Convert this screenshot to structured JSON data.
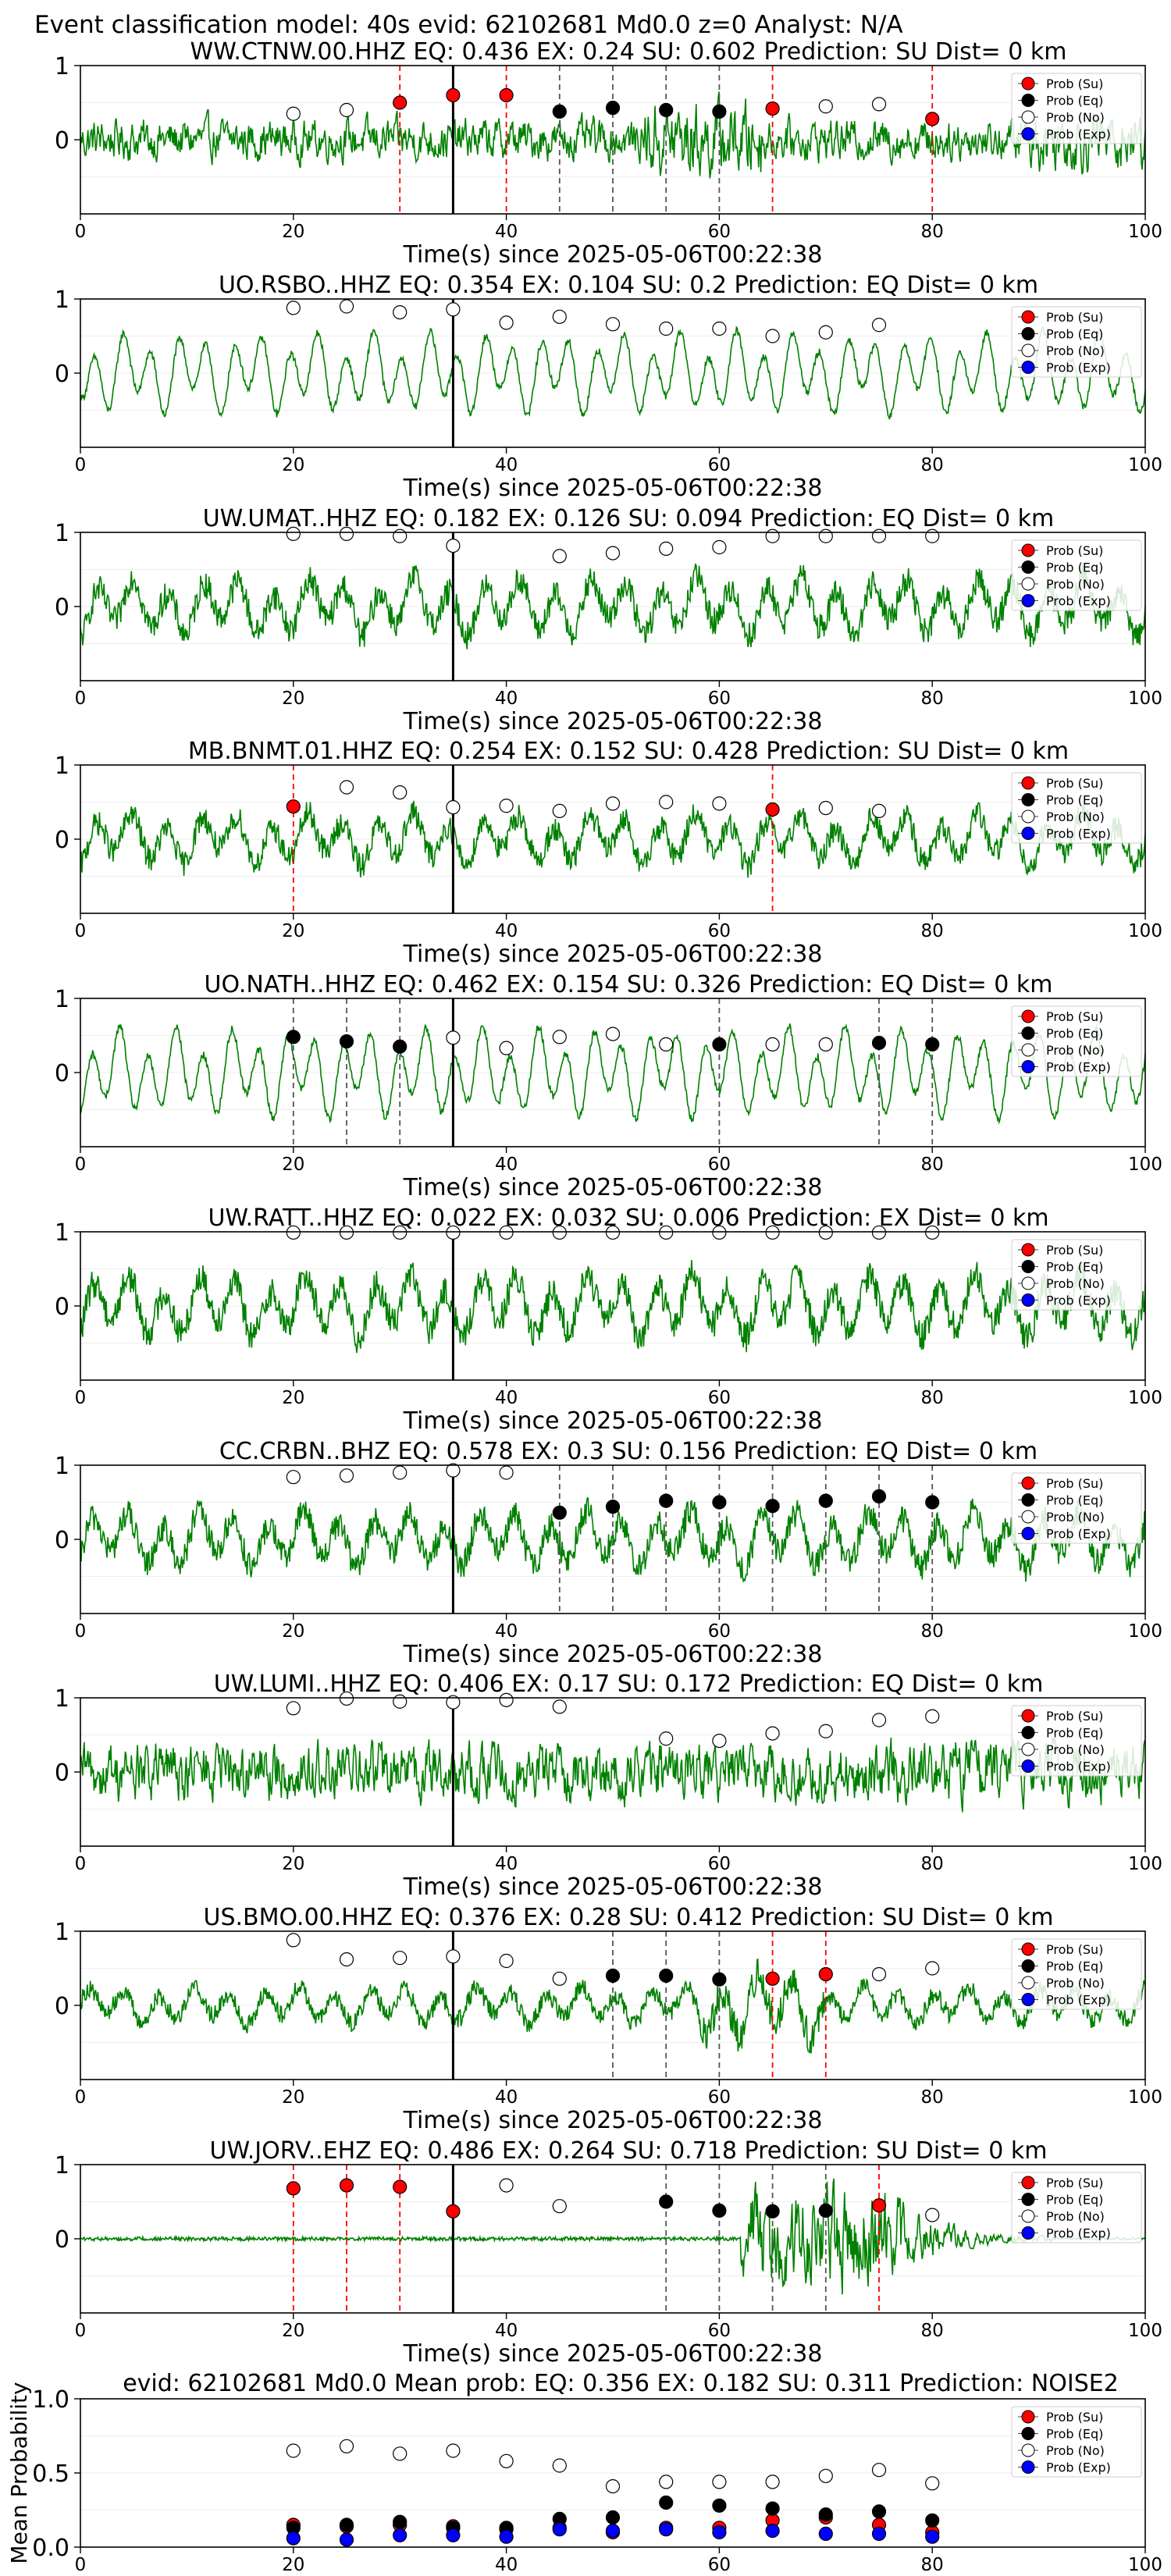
{
  "header": {
    "title": "Event classification model: 40s evid: 62102681 Md0.0 z=0 Analyst: N/A"
  },
  "colors": {
    "trace": "#008000",
    "su": "#ff0000",
    "eq": "#000000",
    "no": "#ffffff",
    "exp": "#0000ff",
    "su_line": "#ff0000",
    "eq_line": "#555555",
    "pick_line": "#000000"
  },
  "legend": [
    "Prob (Su)",
    "Prob (Eq)",
    "Prob (No)",
    "Prob (Exp)"
  ],
  "chart_data": [
    {
      "type": "line",
      "title": "WW.CTNW.00.HHZ   EQ: 0.436   EX: 0.24   SU: 0.602   Prediction: SU     Dist= 0 km",
      "xlabel": "Time(s) since 2025-05-06T00:22:38",
      "xlim": [
        0,
        100
      ],
      "ylim": [
        -1,
        1
      ],
      "xticks": [
        "0",
        "20",
        "40",
        "60",
        "80",
        "100"
      ],
      "yticks": [
        "0",
        "1"
      ],
      "pick_time": 35,
      "waveform": {
        "style": "noisy",
        "amp": 0.38,
        "burst_start": 53,
        "burst_end": 64,
        "burst_amp": 0.7,
        "tail_amp": 0.55
      },
      "points": {
        "su": {
          "x": [
            30,
            35,
            40,
            65,
            80
          ],
          "y": [
            0.5,
            0.6,
            0.6,
            0.42,
            0.28
          ]
        },
        "eq": {
          "x": [
            45,
            50,
            55,
            60
          ],
          "y": [
            0.38,
            0.43,
            0.4,
            0.38
          ]
        },
        "no": {
          "x": [
            20,
            25,
            70,
            75
          ],
          "y": [
            0.35,
            0.4,
            0.45,
            0.48
          ]
        },
        "exp": {
          "x": [],
          "y": []
        }
      },
      "vlines": {
        "su": [
          30,
          40,
          65,
          80
        ],
        "eq": [
          45,
          50,
          55,
          60
        ]
      }
    },
    {
      "type": "line",
      "title": "UO.RSBO..HHZ   EQ: 0.354  EX: 0.104  SU: 0.2   Prediction: EQ    Dist= 0 km",
      "xlabel": "Time(s) since 2025-05-06T00:22:38",
      "xlim": [
        0,
        100
      ],
      "ylim": [
        -1,
        1
      ],
      "xticks": [
        "0",
        "20",
        "40",
        "60",
        "80",
        "100"
      ],
      "yticks": [
        "0",
        "1"
      ],
      "pick_time": 35,
      "waveform": {
        "style": "smooth",
        "amp": 0.55
      },
      "points": {
        "su": {
          "x": [],
          "y": []
        },
        "eq": {
          "x": [],
          "y": []
        },
        "no": {
          "x": [
            20,
            25,
            30,
            35,
            40,
            45,
            50,
            55,
            60,
            65,
            70,
            75
          ],
          "y": [
            0.88,
            0.9,
            0.82,
            0.86,
            0.68,
            0.76,
            0.66,
            0.6,
            0.6,
            0.5,
            0.55,
            0.65
          ]
        },
        "exp": {
          "x": [],
          "y": []
        }
      },
      "vlines": {
        "su": [],
        "eq": []
      }
    },
    {
      "type": "line",
      "title": "UW.UMAT..HHZ   EQ: 0.182  EX: 0.126  SU: 0.094   Prediction: EQ    Dist= 0 km",
      "xlabel": "Time(s) since 2025-05-06T00:22:38",
      "xlim": [
        0,
        100
      ],
      "ylim": [
        -1,
        1
      ],
      "xticks": [
        "0",
        "20",
        "40",
        "60",
        "80",
        "100"
      ],
      "yticks": [
        "0",
        "1"
      ],
      "pick_time": 35,
      "waveform": {
        "style": "mixed",
        "amp": 0.5
      },
      "points": {
        "su": {
          "x": [],
          "y": []
        },
        "eq": {
          "x": [],
          "y": []
        },
        "no": {
          "x": [
            20,
            25,
            30,
            35,
            45,
            50,
            55,
            60,
            65,
            70,
            75,
            80
          ],
          "y": [
            0.98,
            0.98,
            0.95,
            0.82,
            0.68,
            0.72,
            0.78,
            0.8,
            0.95,
            0.95,
            0.95,
            0.95
          ]
        },
        "exp": {
          "x": [],
          "y": []
        }
      },
      "vlines": {
        "su": [],
        "eq": []
      }
    },
    {
      "type": "line",
      "title": "MB.BNMT.01.HHZ   EQ: 0.254  EX: 0.152  SU: 0.428   Prediction: SU    Dist= 0 km",
      "xlabel": "Time(s) since 2025-05-06T00:22:38",
      "xlim": [
        0,
        100
      ],
      "ylim": [
        -1,
        1
      ],
      "xticks": [
        "0",
        "20",
        "40",
        "60",
        "80",
        "100"
      ],
      "yticks": [
        "0",
        "1"
      ],
      "pick_time": 35,
      "waveform": {
        "style": "mixed",
        "amp": 0.45
      },
      "points": {
        "su": {
          "x": [
            20,
            65
          ],
          "y": [
            0.44,
            0.4
          ]
        },
        "eq": {
          "x": [],
          "y": []
        },
        "no": {
          "x": [
            25,
            30,
            35,
            40,
            45,
            50,
            55,
            60,
            70,
            75
          ],
          "y": [
            0.7,
            0.63,
            0.43,
            0.45,
            0.38,
            0.48,
            0.5,
            0.48,
            0.42,
            0.38
          ]
        },
        "exp": {
          "x": [],
          "y": []
        }
      },
      "vlines": {
        "su": [
          20,
          65
        ],
        "eq": []
      }
    },
    {
      "type": "line",
      "title": "UO.NATH..HHZ   EQ: 0.462  EX: 0.154  SU: 0.326   Prediction: EQ    Dist= 0 km",
      "xlabel": "Time(s) since 2025-05-06T00:22:38",
      "xlim": [
        0,
        100
      ],
      "ylim": [
        -1,
        1
      ],
      "xticks": [
        "0",
        "20",
        "40",
        "60",
        "80",
        "100"
      ],
      "yticks": [
        "0",
        "1"
      ],
      "pick_time": 35,
      "waveform": {
        "style": "smooth",
        "amp": 0.6
      },
      "points": {
        "su": {
          "x": [],
          "y": []
        },
        "eq": {
          "x": [
            20,
            25,
            30,
            60,
            75,
            80
          ],
          "y": [
            0.48,
            0.42,
            0.35,
            0.38,
            0.4,
            0.38
          ]
        },
        "no": {
          "x": [
            35,
            40,
            45,
            50,
            55,
            65,
            70
          ],
          "y": [
            0.47,
            0.33,
            0.48,
            0.52,
            0.38,
            0.38,
            0.38
          ]
        },
        "exp": {
          "x": [],
          "y": []
        }
      },
      "vlines": {
        "su": [],
        "eq": [
          20,
          25,
          30,
          60,
          75,
          80
        ]
      }
    },
    {
      "type": "line",
      "title": "UW.RATT..HHZ   EQ: 0.022  EX: 0.032  SU: 0.006   Prediction: EX    Dist= 0 km",
      "xlabel": "Time(s) since 2025-05-06T00:22:38",
      "xlim": [
        0,
        100
      ],
      "ylim": [
        -1,
        1
      ],
      "xticks": [
        "0",
        "20",
        "40",
        "60",
        "80",
        "100"
      ],
      "yticks": [
        "0",
        "1"
      ],
      "pick_time": 35,
      "waveform": {
        "style": "mixed",
        "amp": 0.55
      },
      "points": {
        "su": {
          "x": [],
          "y": []
        },
        "eq": {
          "x": [],
          "y": []
        },
        "no": {
          "x": [
            20,
            25,
            30,
            35,
            40,
            45,
            50,
            55,
            60,
            65,
            70,
            75,
            80
          ],
          "y": [
            0.99,
            0.99,
            0.99,
            0.99,
            0.99,
            0.99,
            0.99,
            0.99,
            0.99,
            0.99,
            0.99,
            0.99,
            0.99
          ]
        },
        "exp": {
          "x": [],
          "y": []
        }
      },
      "vlines": {
        "su": [],
        "eq": []
      }
    },
    {
      "type": "line",
      "title": "CC.CRBN..BHZ   EQ: 0.578  EX: 0.3   SU: 0.156   Prediction: EQ    Dist= 0 km",
      "xlabel": "Time(s) since 2025-05-06T00:22:38",
      "xlim": [
        0,
        100
      ],
      "ylim": [
        -1,
        1
      ],
      "xticks": [
        "0",
        "20",
        "40",
        "60",
        "80",
        "100"
      ],
      "yticks": [
        "0",
        "1"
      ],
      "pick_time": 35,
      "waveform": {
        "style": "mixed",
        "amp": 0.5
      },
      "points": {
        "su": {
          "x": [],
          "y": []
        },
        "eq": {
          "x": [
            45,
            50,
            55,
            60,
            65,
            70,
            75,
            80
          ],
          "y": [
            0.36,
            0.44,
            0.52,
            0.5,
            0.45,
            0.52,
            0.58,
            0.5
          ]
        },
        "no": {
          "x": [
            20,
            25,
            30,
            35,
            40
          ],
          "y": [
            0.84,
            0.86,
            0.9,
            0.93,
            0.9
          ]
        },
        "exp": {
          "x": [],
          "y": []
        }
      },
      "vlines": {
        "su": [],
        "eq": [
          45,
          50,
          55,
          60,
          65,
          70,
          75,
          80
        ]
      }
    },
    {
      "type": "line",
      "title": "UW.LUMI..HHZ   EQ: 0.406  EX: 0.17  SU: 0.172   Prediction: EQ    Dist= 0 km",
      "xlabel": "Time(s) since 2025-05-06T00:22:38",
      "xlim": [
        0,
        100
      ],
      "ylim": [
        -1,
        1
      ],
      "xticks": [
        "0",
        "20",
        "40",
        "60",
        "80",
        "100"
      ],
      "yticks": [
        "0",
        "1"
      ],
      "pick_time": 35,
      "waveform": {
        "style": "noisy",
        "amp": 0.55
      },
      "points": {
        "su": {
          "x": [],
          "y": []
        },
        "eq": {
          "x": [],
          "y": []
        },
        "no": {
          "x": [
            20,
            25,
            30,
            35,
            40,
            45,
            55,
            60,
            65,
            70,
            75,
            80
          ],
          "y": [
            0.86,
            0.99,
            0.95,
            0.94,
            0.97,
            0.88,
            0.45,
            0.42,
            0.52,
            0.55,
            0.7,
            0.75
          ]
        },
        "exp": {
          "x": [],
          "y": []
        }
      },
      "vlines": {
        "su": [],
        "eq": []
      }
    },
    {
      "type": "line",
      "title": "US.BMO.00.HHZ   EQ: 0.376  EX: 0.28  SU: 0.412   Prediction: SU    Dist= 0 km",
      "xlabel": "Time(s) since 2025-05-06T00:22:38",
      "xlim": [
        0,
        100
      ],
      "ylim": [
        -1,
        1
      ],
      "xticks": [
        "0",
        "20",
        "40",
        "60",
        "80",
        "100"
      ],
      "yticks": [
        "0",
        "1"
      ],
      "pick_time": 35,
      "waveform": {
        "style": "mixed",
        "amp": 0.32,
        "burst_start": 58,
        "burst_end": 70,
        "burst_amp": 0.6
      },
      "points": {
        "su": {
          "x": [
            65,
            70
          ],
          "y": [
            0.36,
            0.42
          ]
        },
        "eq": {
          "x": [
            50,
            55,
            60
          ],
          "y": [
            0.4,
            0.4,
            0.35
          ]
        },
        "no": {
          "x": [
            20,
            25,
            30,
            35,
            40,
            45,
            75,
            80
          ],
          "y": [
            0.88,
            0.62,
            0.64,
            0.66,
            0.6,
            0.36,
            0.42,
            0.5
          ]
        },
        "exp": {
          "x": [],
          "y": []
        }
      },
      "vlines": {
        "su": [
          65,
          70
        ],
        "eq": [
          50,
          55,
          60
        ]
      }
    },
    {
      "type": "line",
      "title": "UW.JORV..EHZ   EQ: 0.486  EX: 0.264  SU: 0.718   Prediction: SU    Dist= 0 km",
      "xlabel": "Time(s) since 2025-05-06T00:22:38",
      "xlim": [
        0,
        100
      ],
      "ylim": [
        -1,
        1
      ],
      "xticks": [
        "0",
        "20",
        "40",
        "60",
        "80",
        "100"
      ],
      "yticks": [
        "0",
        "1"
      ],
      "pick_time": 35,
      "waveform": {
        "style": "quiet",
        "amp": 0.025,
        "burst_start": 62,
        "burst_end": 76,
        "burst_amp": 0.9,
        "decay_end": 92
      },
      "points": {
        "su": {
          "x": [
            20,
            25,
            30,
            35,
            75
          ],
          "y": [
            0.68,
            0.72,
            0.7,
            0.37,
            0.45
          ]
        },
        "eq": {
          "x": [
            55,
            60,
            65,
            70
          ],
          "y": [
            0.5,
            0.38,
            0.37,
            0.38
          ]
        },
        "no": {
          "x": [
            40,
            45,
            80
          ],
          "y": [
            0.72,
            0.44,
            0.32
          ]
        },
        "exp": {
          "x": [],
          "y": []
        }
      },
      "vlines": {
        "su": [
          20,
          25,
          30,
          75
        ],
        "eq": [
          55,
          60,
          65,
          70
        ]
      }
    },
    {
      "type": "scatter",
      "title": "evid: 62102681  Md0.0   Mean prob:   EQ: 0.356  EX: 0.182  SU: 0.311   Prediction: NOISE2",
      "ylabel": "Mean Probability",
      "xlim": [
        0,
        100
      ],
      "ylim": [
        0,
        1
      ],
      "xticks": [
        "0",
        "20",
        "40",
        "60",
        "80",
        "100"
      ],
      "yticks": [
        "0.0",
        "0.5",
        "1.0"
      ],
      "series": [
        {
          "name": "Prob (Su)",
          "x": [
            20,
            25,
            30,
            35,
            40,
            45,
            50,
            55,
            60,
            65,
            70,
            75,
            80
          ],
          "y": [
            0.15,
            0.14,
            0.15,
            0.14,
            0.12,
            0.13,
            0.1,
            0.13,
            0.13,
            0.18,
            0.2,
            0.15,
            0.1
          ]
        },
        {
          "name": "Prob (Eq)",
          "x": [
            20,
            25,
            30,
            35,
            40,
            45,
            50,
            55,
            60,
            65,
            70,
            75,
            80
          ],
          "y": [
            0.13,
            0.15,
            0.17,
            0.13,
            0.13,
            0.19,
            0.2,
            0.3,
            0.28,
            0.26,
            0.22,
            0.24,
            0.18
          ]
        },
        {
          "name": "Prob (No)",
          "x": [
            20,
            25,
            30,
            35,
            40,
            45,
            50,
            55,
            60,
            65,
            70,
            75,
            80
          ],
          "y": [
            0.65,
            0.68,
            0.63,
            0.65,
            0.58,
            0.55,
            0.41,
            0.44,
            0.44,
            0.44,
            0.48,
            0.52,
            0.43
          ]
        },
        {
          "name": "Prob (Exp)",
          "x": [
            20,
            25,
            30,
            35,
            40,
            45,
            50,
            55,
            60,
            65,
            70,
            75,
            80
          ],
          "y": [
            0.06,
            0.05,
            0.08,
            0.08,
            0.07,
            0.12,
            0.11,
            0.12,
            0.1,
            0.11,
            0.09,
            0.09,
            0.07
          ]
        }
      ]
    }
  ]
}
